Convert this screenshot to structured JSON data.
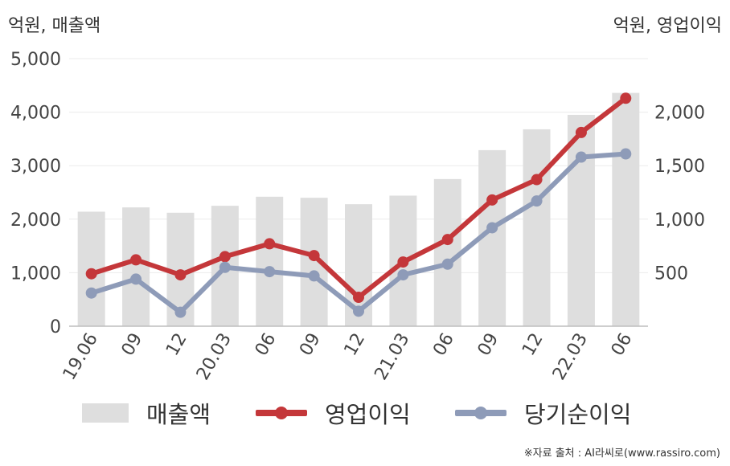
{
  "units": {
    "left": "억원, 매출액",
    "right": "억원, 영업이익"
  },
  "source": "※자료 출처 : AI라씨로(www.rassiro.com)",
  "colors": {
    "sales": "#dedede",
    "operating": "#c4373a",
    "net": "#8e9bb8",
    "grid": "#ebebeb",
    "axis": "#bdbdbd"
  },
  "chart_data": {
    "type": "bar+line",
    "categories": [
      "19.06",
      "09",
      "12",
      "20.03",
      "06",
      "09",
      "12",
      "21.03",
      "06",
      "09",
      "12",
      "22.03",
      "06"
    ],
    "y_left": {
      "min": 0,
      "max": 5000,
      "ticks": [
        0,
        1000,
        2000,
        3000,
        4000,
        5000
      ],
      "tick_labels": [
        "0",
        "1,000",
        "2,000",
        "3,000",
        "4,000",
        "5,000"
      ]
    },
    "y_right": {
      "min": 0,
      "max": 2500,
      "ticks": [
        500,
        1000,
        1500,
        2000
      ],
      "tick_labels": [
        "500",
        "1,000",
        "1,500",
        "2,000"
      ]
    },
    "series": [
      {
        "name": "매출액",
        "kind": "bar",
        "axis": "left",
        "color": "#dedede",
        "values": [
          2140,
          2220,
          2120,
          2250,
          2420,
          2400,
          2280,
          2440,
          2750,
          3290,
          3680,
          3950,
          4360
        ]
      },
      {
        "name": "영업이익",
        "kind": "line",
        "axis": "right",
        "color": "#c4373a",
        "values": [
          490,
          620,
          480,
          650,
          770,
          660,
          270,
          600,
          810,
          1180,
          1370,
          1810,
          2130
        ]
      },
      {
        "name": "당기순이익",
        "kind": "line",
        "axis": "right",
        "color": "#8e9bb8",
        "values": [
          310,
          440,
          130,
          550,
          510,
          470,
          140,
          480,
          580,
          920,
          1170,
          1580,
          1610
        ]
      }
    ],
    "legend_position": "bottom",
    "grid": true
  }
}
